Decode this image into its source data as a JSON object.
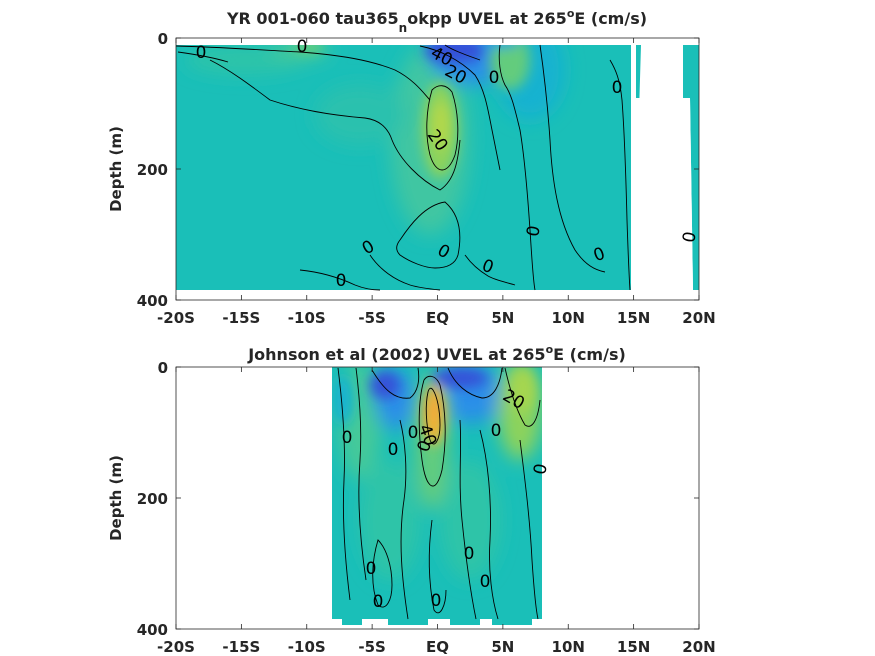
{
  "chart_data": [
    {
      "type": "contour",
      "title_main": "YR 001-060 tau365",
      "title_sub": "n",
      "title_rest": "okpp UVEL at 265",
      "title_sup": "o",
      "title_end": "E (cm/s)",
      "ylabel": "Depth (m)",
      "xlim": [
        -20,
        20
      ],
      "ylim": [
        0,
        400
      ],
      "x_ticks": [
        -20,
        -15,
        -10,
        -5,
        0,
        5,
        10,
        15,
        20
      ],
      "x_tick_labels": [
        "-20S",
        "-15S",
        "-10S",
        "-5S",
        "EQ",
        "5N",
        "10N",
        "15N",
        "20N"
      ],
      "y_ticks": [
        0,
        200,
        400
      ],
      "y_tick_labels": [
        "0",
        "200",
        "400"
      ],
      "colors": {
        "background": "#1ABFB8",
        "weak_positive": "#45C99A",
        "positive": "#8DD35B",
        "strong_positive": "#F4B234",
        "weak_negative": "#15B2D0",
        "negative": "#2C8FE8",
        "strong_negative": "#3451D8"
      },
      "features": [
        {
          "label": "0",
          "x": -18.2,
          "depth": 10
        },
        {
          "label": "0",
          "x": -10.1,
          "depth": 6
        },
        {
          "label": "40",
          "x": 0.8,
          "depth": 20
        },
        {
          "label": "20",
          "x": 1.6,
          "depth": 45
        },
        {
          "label": "0",
          "x": 4.6,
          "depth": 60
        },
        {
          "label": "0",
          "x": 15.2,
          "depth": 75
        },
        {
          "label": "20",
          "x": 0.6,
          "depth": 150
        },
        {
          "label": "0",
          "x": 7.5,
          "depth": 293
        },
        {
          "label": "0",
          "x": 19.5,
          "depth": 303
        },
        {
          "label": "0",
          "x": -5.1,
          "depth": 320
        },
        {
          "label": "0",
          "x": 0.8,
          "depth": 325
        },
        {
          "label": "0",
          "x": 12.3,
          "depth": 328
        },
        {
          "label": "0",
          "x": 4.2,
          "depth": 345
        },
        {
          "label": "0",
          "x": -7.2,
          "depth": 368
        }
      ]
    },
    {
      "type": "contour",
      "title_main": "Johnson et al (2002) UVEL at 265",
      "title_sub": "",
      "title_rest": "",
      "title_sup": "o",
      "title_end": "E (cm/s)",
      "ylabel": "Depth (m)",
      "xlim": [
        -20,
        20
      ],
      "ylim": [
        0,
        400
      ],
      "data_extent_x": [
        -8,
        8
      ],
      "x_ticks": [
        -20,
        -15,
        -10,
        -5,
        0,
        5,
        10,
        15,
        20
      ],
      "x_tick_labels": [
        "-20S",
        "-15S",
        "-10S",
        "-5S",
        "EQ",
        "5N",
        "10N",
        "15N",
        "20N"
      ],
      "y_ticks": [
        0,
        200,
        400
      ],
      "y_tick_labels": [
        "0",
        "200",
        "400"
      ],
      "features": [
        {
          "label": "20",
          "x": 6.2,
          "depth": 48
        },
        {
          "label": "40",
          "x": -0.5,
          "depth": 100
        },
        {
          "label": "0",
          "x": -6.5,
          "depth": 106
        },
        {
          "label": "0",
          "x": -1.6,
          "depth": 98
        },
        {
          "label": "0",
          "x": -3.2,
          "depth": 124
        },
        {
          "label": "0",
          "x": -0.8,
          "depth": 120
        },
        {
          "label": "0",
          "x": 4.8,
          "depth": 96
        },
        {
          "label": "0",
          "x": 8.0,
          "depth": 156
        },
        {
          "label": "0",
          "x": 2.7,
          "depth": 280
        },
        {
          "label": "0",
          "x": -5.2,
          "depth": 305
        },
        {
          "label": "0",
          "x": 4.0,
          "depth": 323
        },
        {
          "label": "0",
          "x": -4.5,
          "depth": 355
        },
        {
          "label": "0",
          "x": 0.0,
          "depth": 353
        }
      ]
    }
  ]
}
